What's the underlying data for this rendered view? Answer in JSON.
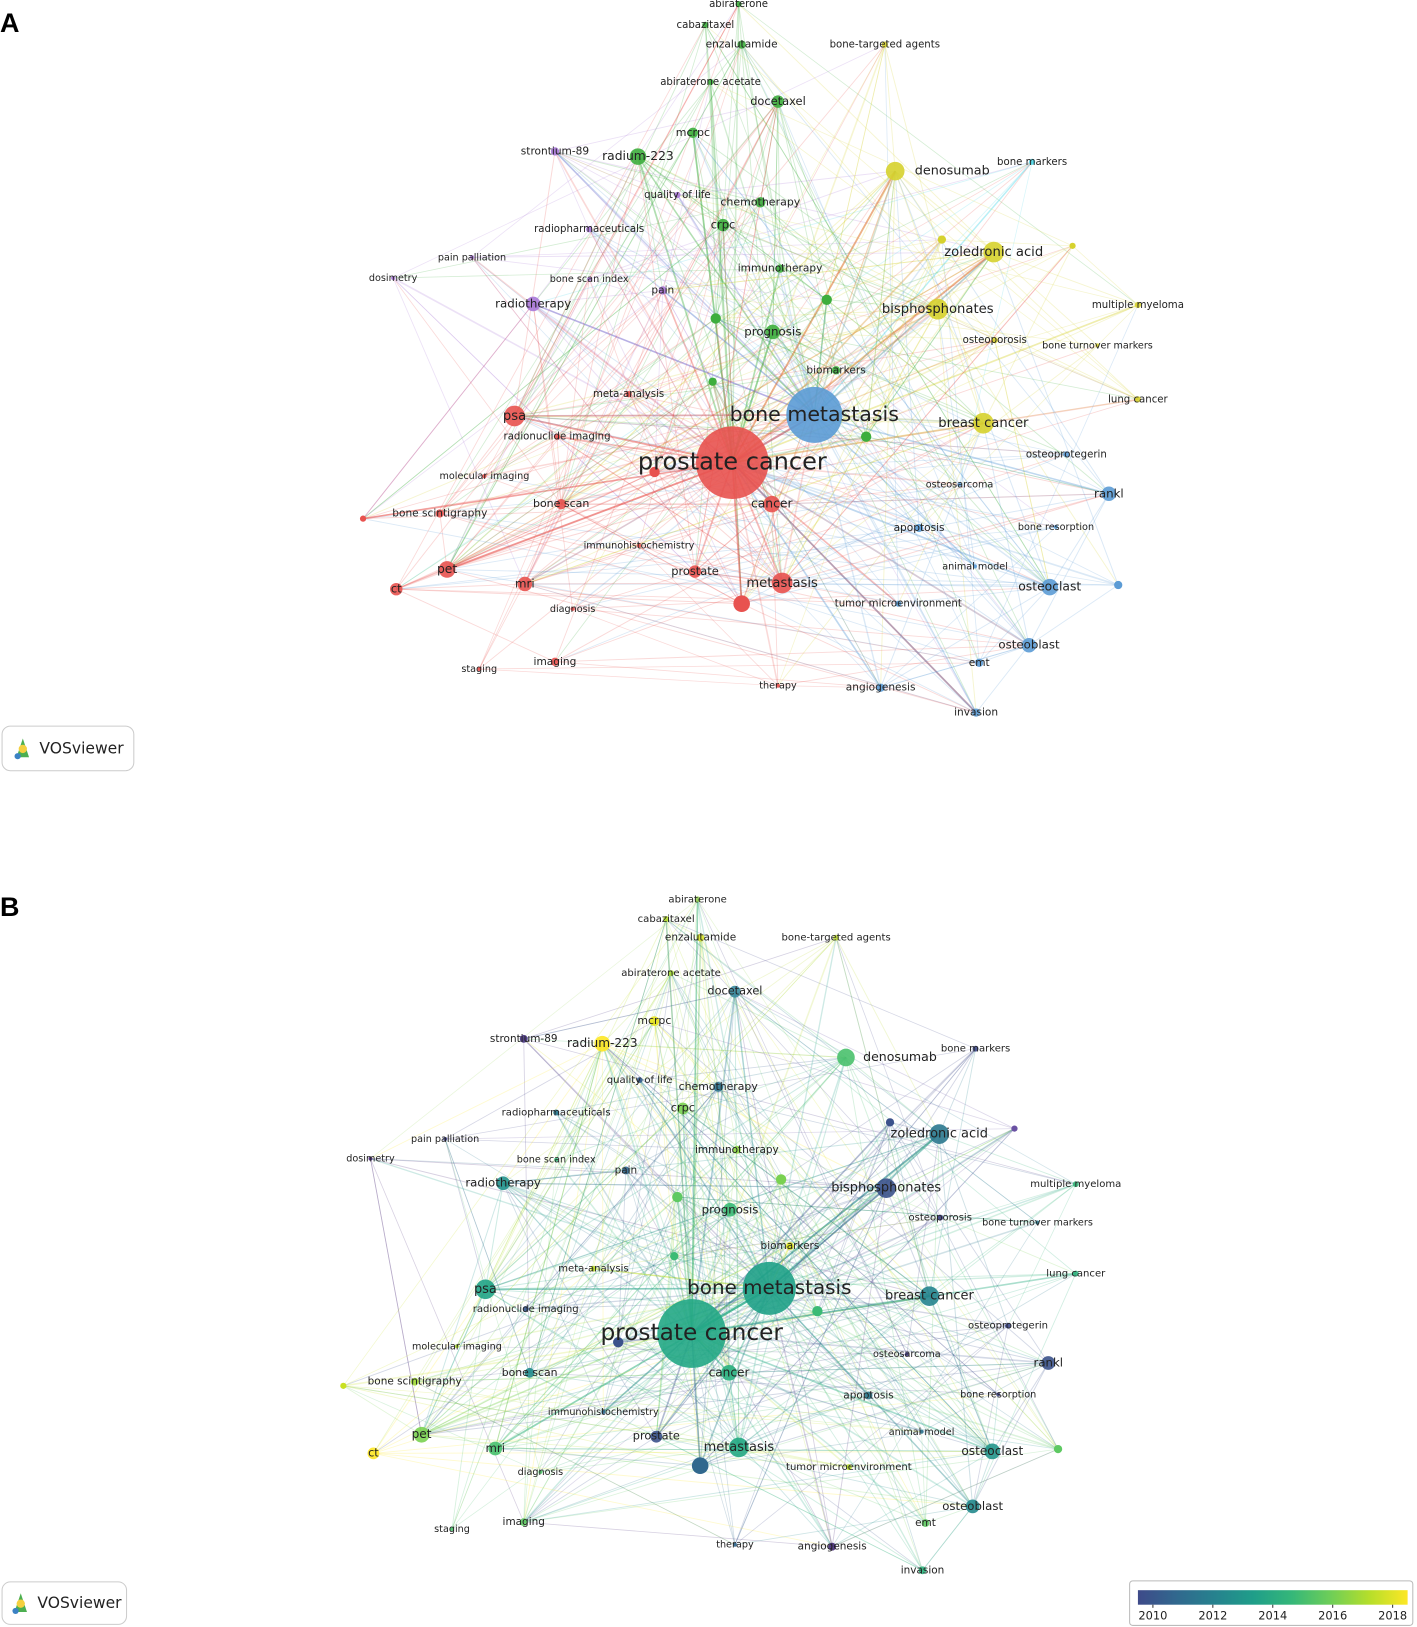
{
  "panels": [
    {
      "label": "A",
      "logo": "VOSviewer",
      "nodes": [
        {
          "label": "abiraterone",
          "color": "#3dae3d"
        },
        {
          "label": "cabazitaxel",
          "color": "#3dae3d"
        },
        {
          "label": "enzalutamide",
          "color": "#3dae3d"
        },
        {
          "label": "bone-targeted agents",
          "color": "#d6d22e"
        },
        {
          "label": "abiraterone acetate",
          "color": "#3dae3d"
        },
        {
          "label": "docetaxel",
          "color": "#3dae3d"
        },
        {
          "label": "mcrpc",
          "color": "#3dae3d"
        },
        {
          "label": "strontium-89",
          "color": "#a878d8"
        },
        {
          "label": "radium-223",
          "color": "#3dae3d"
        },
        {
          "label": "denosumab",
          "color": "#d6d22e"
        },
        {
          "label": "bone markers",
          "color": "#4ad6e8"
        },
        {
          "label": "quality of life",
          "color": "#a878d8"
        },
        {
          "label": "chemotherapy",
          "color": "#3dae3d"
        },
        {
          "label": "crpc",
          "color": "#3dae3d"
        },
        {
          "label": "radiopharmaceuticals",
          "color": "#a878d8"
        },
        {
          "label": "zoledronic acid",
          "color": "#d6d22e"
        },
        {
          "label": "pain palliation",
          "color": "#a878d8"
        },
        {
          "label": "immunotherapy",
          "color": "#3dae3d"
        },
        {
          "label": "dosimetry",
          "color": "#a878d8"
        },
        {
          "label": "bone scan index",
          "color": "#a878d8"
        },
        {
          "label": "pain",
          "color": "#a878d8"
        },
        {
          "label": "radiotherapy",
          "color": "#a878d8"
        },
        {
          "label": "bisphosphonates",
          "color": "#d6d22e"
        },
        {
          "label": "multiple myeloma",
          "color": "#d6d22e"
        },
        {
          "label": "prognosis",
          "color": "#3dae3d"
        },
        {
          "label": "osteoporosis",
          "color": "#d6d22e"
        },
        {
          "label": "bone turnover markers",
          "color": "#d6d22e"
        },
        {
          "label": "biomarkers",
          "color": "#3dae3d"
        },
        {
          "label": "meta-analysis",
          "color": "#e8524f"
        },
        {
          "label": "lung cancer",
          "color": "#d6d22e"
        },
        {
          "label": "bone metastasis",
          "color": "#5b9bd5"
        },
        {
          "label": "psa",
          "color": "#e8524f"
        },
        {
          "label": "breast cancer",
          "color": "#d6d22e"
        },
        {
          "label": "radionuclide imaging",
          "color": "#e8524f"
        },
        {
          "label": "osteoprotegerin",
          "color": "#5b9bd5"
        },
        {
          "label": "prostate cancer",
          "color": "#e8524f"
        },
        {
          "label": "molecular imaging",
          "color": "#e8524f"
        },
        {
          "label": "osteosarcoma",
          "color": "#5b9bd5"
        },
        {
          "label": "rankl",
          "color": "#5b9bd5"
        },
        {
          "label": "cancer",
          "color": "#e8524f"
        },
        {
          "label": "bone scan",
          "color": "#e8524f"
        },
        {
          "label": "bone scintigraphy",
          "color": "#e8524f"
        },
        {
          "label": "apoptosis",
          "color": "#5b9bd5"
        },
        {
          "label": "bone resorption",
          "color": "#5b9bd5"
        },
        {
          "label": "immunohistochemistry",
          "color": "#e8524f"
        },
        {
          "label": "animal model",
          "color": "#5b9bd5"
        },
        {
          "label": "pet",
          "color": "#e8524f"
        },
        {
          "label": "prostate",
          "color": "#e8524f"
        },
        {
          "label": "metastasis",
          "color": "#e8524f"
        },
        {
          "label": "osteoclast",
          "color": "#5b9bd5"
        },
        {
          "label": "mri",
          "color": "#e8524f"
        },
        {
          "label": "ct",
          "color": "#e8524f"
        },
        {
          "label": "tumor microenvironment",
          "color": "#5b9bd5"
        },
        {
          "label": "diagnosis",
          "color": "#e8524f"
        },
        {
          "label": "osteoblast",
          "color": "#5b9bd5"
        },
        {
          "label": "emt",
          "color": "#5b9bd5"
        },
        {
          "label": "imaging",
          "color": "#e8524f"
        },
        {
          "label": "staging",
          "color": "#e8524f"
        },
        {
          "label": "therapy",
          "color": "#e8524f"
        },
        {
          "label": "angiogenesis",
          "color": "#5b9bd5"
        },
        {
          "label": "invasion",
          "color": "#5b9bd5"
        }
      ]
    },
    {
      "label": "B",
      "logo": "VOSviewer",
      "nodes": [
        {
          "label": "abiraterone",
          "color": "#9bd45a"
        },
        {
          "label": "cabazitaxel",
          "color": "#b5de2b"
        },
        {
          "label": "enzalutamide",
          "color": "#d6e22b"
        },
        {
          "label": "bone-targeted agents",
          "color": "#c0dc3a"
        },
        {
          "label": "abiraterone acetate",
          "color": "#a5db36"
        },
        {
          "label": "docetaxel",
          "color": "#3a8a9e"
        },
        {
          "label": "mcrpc",
          "color": "#e7e419"
        },
        {
          "label": "strontium-89",
          "color": "#46337e"
        },
        {
          "label": "radium-223",
          "color": "#fde725"
        },
        {
          "label": "denosumab",
          "color": "#4ac16d"
        },
        {
          "label": "bone markers",
          "color": "#3e4a89"
        },
        {
          "label": "quality of life",
          "color": "#365c8d"
        },
        {
          "label": "chemotherapy",
          "color": "#2c728e"
        },
        {
          "label": "crpc",
          "color": "#7ad151"
        },
        {
          "label": "radiopharmaceuticals",
          "color": "#2a788e"
        },
        {
          "label": "zoledronic acid",
          "color": "#2a788e"
        },
        {
          "label": "pain palliation",
          "color": "#414487"
        },
        {
          "label": "immunotherapy",
          "color": "#8fd744"
        },
        {
          "label": "dosimetry",
          "color": "#482878"
        },
        {
          "label": "bone scan index",
          "color": "#35b779"
        },
        {
          "label": "pain",
          "color": "#31688e"
        },
        {
          "label": "radiotherapy",
          "color": "#21918c"
        },
        {
          "label": "bisphosphonates",
          "color": "#3b528b"
        },
        {
          "label": "multiple myeloma",
          "color": "#35b779"
        },
        {
          "label": "prognosis",
          "color": "#3bbb75"
        },
        {
          "label": "osteoporosis",
          "color": "#414487"
        },
        {
          "label": "bone turnover markers",
          "color": "#2a788e"
        },
        {
          "label": "biomarkers",
          "color": "#dde318"
        },
        {
          "label": "meta-analysis",
          "color": "#bddf26"
        },
        {
          "label": "lung cancer",
          "color": "#2db27d"
        },
        {
          "label": "bone metastasis",
          "color": "#1fa187"
        },
        {
          "label": "psa",
          "color": "#20a486"
        },
        {
          "label": "breast cancer",
          "color": "#25848e"
        },
        {
          "label": "radionuclide imaging",
          "color": "#38588c"
        },
        {
          "label": "osteoprotegerin",
          "color": "#3e4a89"
        },
        {
          "label": "prostate cancer",
          "color": "#22a785"
        },
        {
          "label": "molecular imaging",
          "color": "#addc30"
        },
        {
          "label": "osteosarcoma",
          "color": "#433e85"
        },
        {
          "label": "rankl",
          "color": "#3b528b"
        },
        {
          "label": "cancer",
          "color": "#2ab07f"
        },
        {
          "label": "bone scan",
          "color": "#228c8d"
        },
        {
          "label": "bone scintigraphy",
          "color": "#a2da37"
        },
        {
          "label": "apoptosis",
          "color": "#2a788e"
        },
        {
          "label": "bone resorption",
          "color": "#404688"
        },
        {
          "label": "immunohistochemistry",
          "color": "#31688e"
        },
        {
          "label": "animal model",
          "color": "#2c728e"
        },
        {
          "label": "pet",
          "color": "#7ad151"
        },
        {
          "label": "prostate",
          "color": "#3b528b"
        },
        {
          "label": "metastasis",
          "color": "#23a983"
        },
        {
          "label": "osteoclast",
          "color": "#22958b"
        },
        {
          "label": "mri",
          "color": "#48c16e"
        },
        {
          "label": "ct",
          "color": "#fde725"
        },
        {
          "label": "tumor microenvironment",
          "color": "#b8de29"
        },
        {
          "label": "diagnosis",
          "color": "#52c569"
        },
        {
          "label": "osteoblast",
          "color": "#238a8d"
        },
        {
          "label": "emt",
          "color": "#5ec962"
        },
        {
          "label": "imaging",
          "color": "#5ec962"
        },
        {
          "label": "staging",
          "color": "#4ac16d"
        },
        {
          "label": "therapy",
          "color": "#31688e"
        },
        {
          "label": "angiogenesis",
          "color": "#472d7b"
        },
        {
          "label": "invasion",
          "color": "#2db27d"
        }
      ],
      "colorbar": {
        "lim": [
          2009.5,
          2018.5
        ],
        "ticks": [
          2010,
          2012,
          2014,
          2016,
          2018
        ]
      }
    }
  ]
}
